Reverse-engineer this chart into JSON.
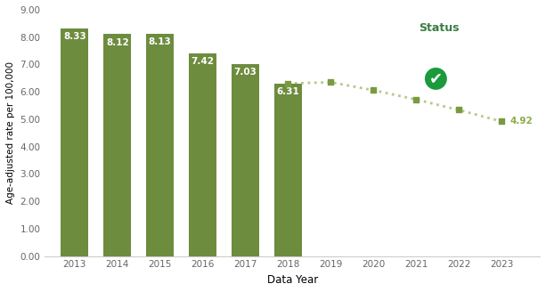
{
  "bar_years": [
    2013,
    2014,
    2015,
    2016,
    2017,
    2018
  ],
  "bar_values": [
    8.33,
    8.12,
    8.13,
    7.42,
    7.03,
    6.31
  ],
  "proj_years": [
    2018,
    2019,
    2020,
    2021,
    2022,
    2023
  ],
  "proj_values": [
    6.31,
    6.35,
    6.06,
    5.72,
    5.34,
    4.92
  ],
  "bar_color": "#6d8c3e",
  "proj_color": "#b5c98a",
  "proj_marker_color": "#7a9a40",
  "bar_label_color": "#ffffff",
  "final_label_color": "#8aad47",
  "xlabel": "Data Year",
  "ylabel": "Age-adjusted rate per 100,000",
  "ylim": [
    0,
    9.0
  ],
  "yticks": [
    0.0,
    1.0,
    2.0,
    3.0,
    4.0,
    5.0,
    6.0,
    7.0,
    8.0,
    9.0
  ],
  "all_years": [
    2013,
    2014,
    2015,
    2016,
    2017,
    2018,
    2019,
    2020,
    2021,
    2022,
    2023
  ],
  "legend_title": "Status",
  "legend_title_color": "#3a7d44",
  "checkmark_color": "#1a9a3c",
  "background_color": "#ffffff"
}
